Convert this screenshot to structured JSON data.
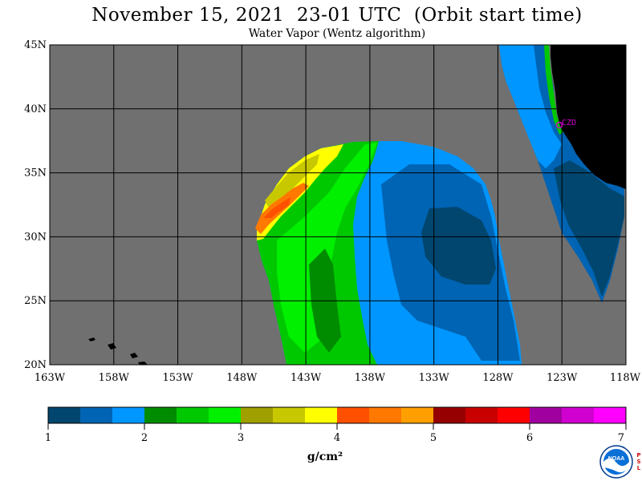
{
  "header": {
    "title": "November 15, 2021  23-01 UTC  (Orbit start time)",
    "subtitle": "Water Vapor (Wentz algorithm)"
  },
  "map": {
    "latitude_labels": [
      "45N",
      "40N",
      "35N",
      "30N",
      "25N",
      "20N"
    ],
    "longitude_labels": [
      "163W",
      "158W",
      "153W",
      "148W",
      "143W",
      "138W",
      "133W",
      "128W",
      "123W",
      "118W"
    ],
    "station_label": "CZD",
    "colors": {
      "background": "#707070",
      "land": "#000000",
      "station": "#d000d0"
    }
  },
  "colorbar": {
    "labels": [
      "1",
      "2",
      "3",
      "4",
      "5",
      "6",
      "7"
    ],
    "units": "g/cm²",
    "colors": [
      "#00466e",
      "#0064b4",
      "#0096ff",
      "#008c00",
      "#00c800",
      "#00f000",
      "#a0a000",
      "#c8c800",
      "#ffff00",
      "#ff5000",
      "#ff7800",
      "#ffa000",
      "#960000",
      "#c80000",
      "#ff0000",
      "#a000a0",
      "#d000d0",
      "#ff00ff"
    ]
  },
  "logo": {
    "text": "NOAA",
    "side_letters": "PSL"
  }
}
